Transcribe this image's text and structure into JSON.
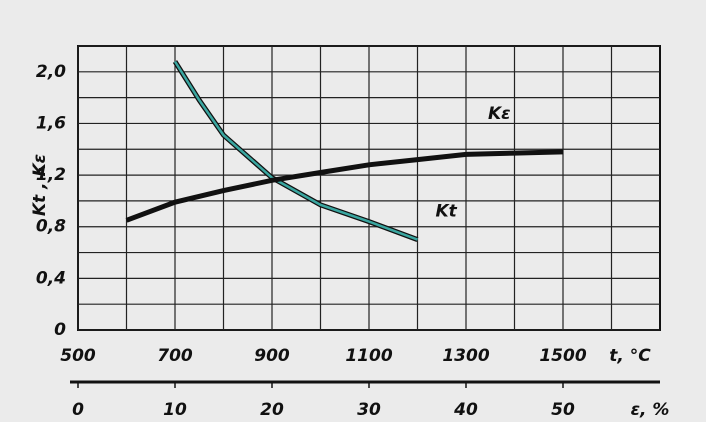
{
  "chart_data": {
    "type": "line",
    "x_label": "t, °C",
    "x2_label": "ε, %",
    "y_label": "Kt , Kε",
    "xlim": [
      500,
      1700
    ],
    "xticks": [
      500,
      700,
      900,
      1100,
      1300,
      1500
    ],
    "x2lim": [
      0,
      60
    ],
    "x2ticks": [
      0,
      10,
      20,
      30,
      40,
      50
    ],
    "ylim": [
      0,
      2.2
    ],
    "yticks": [
      0,
      {
        "value": 0.4,
        "label": "0,4"
      },
      {
        "value": 0.8,
        "label": "0,8"
      },
      {
        "value": 1.2,
        "label": "1,2"
      },
      {
        "value": 1.6,
        "label": "1,6"
      },
      {
        "value": 2.0,
        "label": "2,0"
      }
    ],
    "grid": true,
    "minor_grid": true,
    "series": [
      {
        "name": "Kt",
        "color": "#3aa6a0",
        "x": [
          700,
          750,
          800,
          900,
          1000,
          1100,
          1200
        ],
        "values": [
          2.08,
          1.78,
          1.51,
          1.18,
          0.97,
          0.84,
          0.7
        ]
      },
      {
        "name": "Kε",
        "color": "#111111",
        "x": [
          600,
          700,
          800,
          900,
          1000,
          1100,
          1200,
          1300,
          1400,
          1500
        ],
        "values": [
          0.85,
          0.99,
          1.08,
          1.16,
          1.22,
          1.28,
          1.32,
          1.36,
          1.37,
          1.38
        ]
      }
    ]
  }
}
